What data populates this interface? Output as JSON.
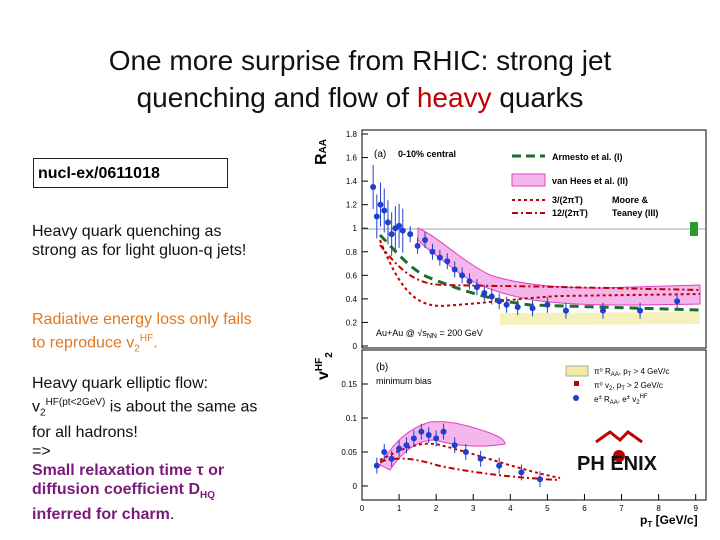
{
  "title": {
    "line1": "One more surprise from RHIC: strong jet",
    "line2_part1": "quenching and flow of ",
    "line2_highlight": "heavy",
    "line2_part2": " quarks"
  },
  "reference": "nucl-ex/0611018",
  "text": {
    "p1": "Heavy quark quenching as strong as for light gluon-q jets!",
    "p2_a": "Radiative energy loss only fails to reproduce v",
    "p2_sub": "2",
    "p2_sup": "HF",
    "p2_end": ".",
    "p3_a": "Heavy quark elliptic flow:",
    "p3_v": "v",
    "p3_sub": "2",
    "p3_sup": "HF(pt<2GeV)",
    "p3_b": " is about the same as for all hadrons!",
    "p3_arrow": "=>",
    "p3_em1": "Small relaxation time τ or diffusion coefficient D",
    "p3_em_sub": "HQ",
    "p3_em2": " inferred for charm",
    "p3_end": "."
  },
  "plot": {
    "top_ylabel": "R",
    "top_ylabel_sub": "AA",
    "bottom_ylabel": "v",
    "bottom_ylabel_sup": "HF",
    "bottom_ylabel_sub": "2",
    "top_panel_label": "(a)",
    "top_panel_note": "0-10% central",
    "bottom_panel_label": "(b)",
    "bottom_panel_note": "minimum bias",
    "system_label": "Au+Au @ √s",
    "system_label_sub": "NN",
    "system_label_end": " = 200 GeV",
    "xlabel": "p",
    "xlabel_sub": "T",
    "xlabel_end": " [GeV/c]",
    "top_yticks": [
      "1.8",
      "1.6",
      "1.4",
      "1.2",
      "1",
      "0.8",
      "0.6",
      "0.4",
      "0.2",
      "0"
    ],
    "bottom_yticks": [
      "0.15",
      "0.1",
      "0.05",
      "0"
    ],
    "xticks": [
      "0",
      "1",
      "2",
      "3",
      "4",
      "5",
      "6",
      "7",
      "8",
      "9"
    ],
    "legend_top": [
      "Armesto et al. (I)",
      "van Hees et al. (II)",
      "3/(2πT)",
      "12/(2πT)",
      "Moore &",
      "Teaney (III)"
    ],
    "legend_bottom": [
      "π⁰ R",
      "AA",
      ", p",
      "T",
      " > 4 GeV/c",
      "π⁰ v",
      "2",
      ", p",
      "T",
      " > 2 GeV/c",
      "e",
      "±",
      " R",
      "AA",
      ", e",
      "±",
      " v",
      "2",
      "HF"
    ],
    "logo": "PH  ENIX",
    "colors": {
      "accent_red": "#c00000",
      "orange": "#e07820",
      "purple": "#7a1a7a",
      "blue": "#1f3fd0",
      "magenta": "#e040c0",
      "green": "#1e6b2a"
    }
  },
  "chart_data": [
    {
      "type": "scatter",
      "title": "(a) 0-10% central",
      "ylabel": "RAA",
      "xlabel": "pT [GeV/c]",
      "xlim": [
        0,
        9
      ],
      "ylim": [
        0,
        1.85
      ],
      "series": [
        {
          "name": "e± RAA",
          "x": [
            0.3,
            0.4,
            0.5,
            0.6,
            0.7,
            0.8,
            0.9,
            1.0,
            1.1,
            1.3,
            1.5,
            1.7,
            1.9,
            2.1,
            2.3,
            2.5,
            2.7,
            2.9,
            3.1,
            3.3,
            3.5,
            3.7,
            3.9,
            4.2,
            4.6,
            5.0,
            5.5,
            6.5,
            7.5,
            8.5
          ],
          "y": [
            1.35,
            1.1,
            1.2,
            1.15,
            1.05,
            0.95,
            1.0,
            1.02,
            0.98,
            0.95,
            0.85,
            0.9,
            0.8,
            0.75,
            0.72,
            0.65,
            0.6,
            0.55,
            0.5,
            0.45,
            0.42,
            0.38,
            0.35,
            0.33,
            0.32,
            0.35,
            0.3,
            0.3,
            0.3,
            0.38
          ]
        }
      ]
    },
    {
      "type": "scatter",
      "title": "(b) minimum bias",
      "ylabel": "v2HF",
      "xlabel": "pT [GeV/c]",
      "xlim": [
        0,
        9
      ],
      "ylim": [
        -0.01,
        0.19
      ],
      "series": [
        {
          "name": "e± v2HF",
          "x": [
            0.4,
            0.6,
            0.8,
            1.0,
            1.2,
            1.4,
            1.6,
            1.8,
            2.0,
            2.2,
            2.5,
            2.8,
            3.2,
            3.7,
            4.3,
            4.8
          ],
          "y": [
            0.03,
            0.05,
            0.04,
            0.055,
            0.06,
            0.07,
            0.08,
            0.075,
            0.07,
            0.08,
            0.06,
            0.05,
            0.04,
            0.03,
            0.02,
            0.01
          ]
        }
      ]
    }
  ]
}
